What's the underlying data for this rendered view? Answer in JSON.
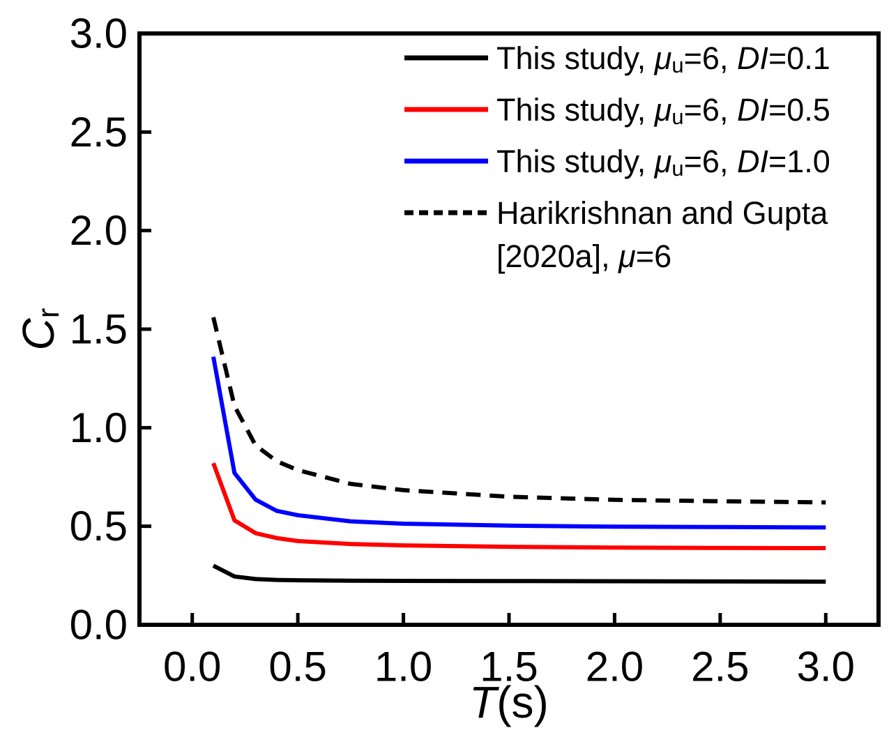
{
  "figure": {
    "background": "#ffffff",
    "frame_color": "#000000"
  },
  "chart_data": {
    "type": "line",
    "title": "",
    "xlabel": "T(s)",
    "ylabel": "Cr",
    "xlabel_parts": [
      {
        "t": "T",
        "s": "i"
      },
      {
        "t": "(s)",
        "s": "n"
      }
    ],
    "ylabel_parts": [
      {
        "t": "C",
        "s": "i"
      },
      {
        "t": "r",
        "s": "sub"
      }
    ],
    "xlim": [
      -0.25,
      3.25
    ],
    "ylim": [
      0.0,
      3.0
    ],
    "grid": false,
    "legend_position": "top-right",
    "xticks": {
      "values": [
        0.0,
        0.5,
        1.0,
        1.5,
        2.0,
        2.5,
        3.0
      ],
      "labels": [
        "0.0",
        "0.5",
        "1.0",
        "1.5",
        "2.0",
        "2.5",
        "3.0"
      ]
    },
    "yticks": {
      "values": [
        0.0,
        0.5,
        1.0,
        1.5,
        2.0,
        2.5,
        3.0
      ],
      "labels": [
        "0.0",
        "0.5",
        "1.0",
        "1.5",
        "2.0",
        "2.5",
        "3.0"
      ]
    },
    "series": [
      {
        "name": "This study, μu=6, DI=0.1",
        "color": "#000000",
        "style": "solid",
        "x": [
          0.1,
          0.2,
          0.3,
          0.4,
          0.5,
          0.75,
          1.0,
          1.5,
          2.0,
          2.5,
          3.0
        ],
        "y": [
          0.3,
          0.245,
          0.232,
          0.228,
          0.226,
          0.224,
          0.223,
          0.222,
          0.221,
          0.22,
          0.219
        ],
        "legend_lines": [
          [
            {
              "t": "This study, ",
              "s": "n"
            },
            {
              "t": "μ",
              "s": "i"
            },
            {
              "t": "u",
              "s": "sub"
            },
            {
              "t": "=6, ",
              "s": "n"
            },
            {
              "t": "DI",
              "s": "i"
            },
            {
              "t": "=0.1",
              "s": "n"
            }
          ]
        ]
      },
      {
        "name": "This study, μu=6, DI=0.5",
        "color": "#ff0000",
        "style": "solid",
        "x": [
          0.1,
          0.2,
          0.3,
          0.4,
          0.5,
          0.75,
          1.0,
          1.5,
          2.0,
          2.5,
          3.0
        ],
        "y": [
          0.82,
          0.53,
          0.465,
          0.44,
          0.425,
          0.41,
          0.403,
          0.396,
          0.392,
          0.39,
          0.389
        ],
        "legend_lines": [
          [
            {
              "t": "This study, ",
              "s": "n"
            },
            {
              "t": "μ",
              "s": "i"
            },
            {
              "t": "u",
              "s": "sub"
            },
            {
              "t": "=6, ",
              "s": "n"
            },
            {
              "t": "DI",
              "s": "i"
            },
            {
              "t": "=0.5",
              "s": "n"
            }
          ]
        ]
      },
      {
        "name": "This study, μu=6, DI=1.0",
        "color": "#0000ff",
        "style": "solid",
        "x": [
          0.1,
          0.2,
          0.3,
          0.4,
          0.5,
          0.75,
          1.0,
          1.5,
          2.0,
          2.5,
          3.0
        ],
        "y": [
          1.36,
          0.77,
          0.635,
          0.578,
          0.556,
          0.525,
          0.513,
          0.503,
          0.498,
          0.496,
          0.494
        ],
        "legend_lines": [
          [
            {
              "t": "This study, ",
              "s": "n"
            },
            {
              "t": "μ",
              "s": "i"
            },
            {
              "t": "u",
              "s": "sub"
            },
            {
              "t": "=6, ",
              "s": "n"
            },
            {
              "t": "DI",
              "s": "i"
            },
            {
              "t": "=1.0",
              "s": "n"
            }
          ]
        ]
      },
      {
        "name": "Harikrishnan and Gupta [2020a], μ=6",
        "color": "#000000",
        "style": "dashed",
        "x": [
          0.1,
          0.2,
          0.3,
          0.4,
          0.5,
          0.75,
          1.0,
          1.5,
          2.0,
          2.5,
          3.0
        ],
        "y": [
          1.56,
          1.11,
          0.91,
          0.83,
          0.785,
          0.715,
          0.683,
          0.65,
          0.634,
          0.627,
          0.621
        ],
        "legend_lines": [
          [
            {
              "t": "Harikrishnan and Gupta",
              "s": "n"
            }
          ],
          [
            {
              "t": "[2020a], ",
              "s": "n"
            },
            {
              "t": "μ",
              "s": "i"
            },
            {
              "t": "=6",
              "s": "n"
            }
          ]
        ]
      }
    ]
  }
}
